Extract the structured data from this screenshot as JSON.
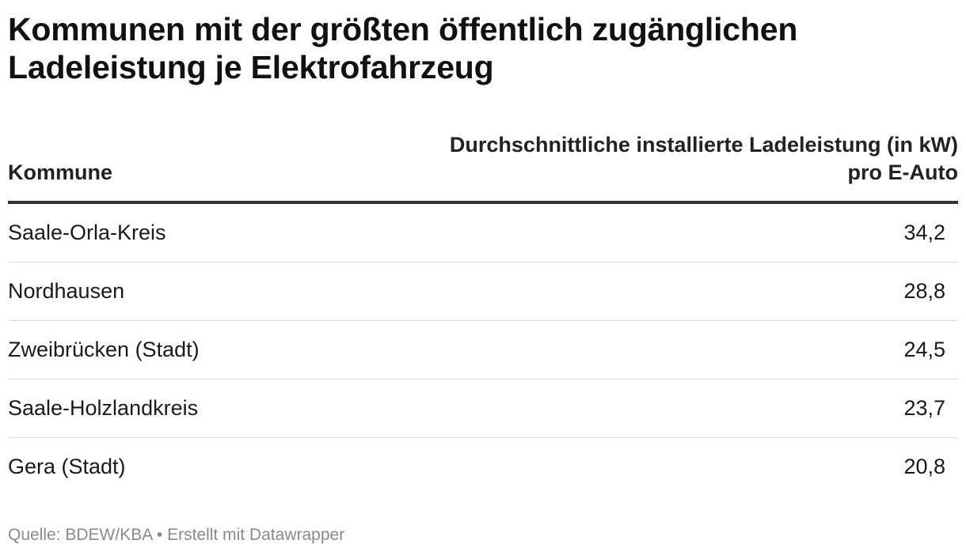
{
  "title": "Kommunen mit der größten öffentlich zugänglichen Ladeleistung je Elektrofahrzeug",
  "footer": {
    "source": "Quelle: BDEW/KBA",
    "separator": "•",
    "credit": "Erstellt mit Datawrapper"
  },
  "chart_data": {
    "type": "table",
    "title": "Kommunen mit der größten öffentlich zugänglichen Ladeleistung je Elektrofahrzeug",
    "columns": [
      "Kommune",
      "Durchschnittliche installierte Ladeleistung (in kW) pro E-Auto"
    ],
    "rows": [
      {
        "kommune": "Saale-Orla-Kreis",
        "value": "34,2"
      },
      {
        "kommune": "Nordhausen",
        "value": "28,8"
      },
      {
        "kommune": "Zweibrücken (Stadt)",
        "value": "24,5"
      },
      {
        "kommune": "Saale-Holzlandkreis",
        "value": "23,7"
      },
      {
        "kommune": "Gera (Stadt)",
        "value": "20,8"
      }
    ],
    "source": "Quelle: BDEW/KBA"
  }
}
